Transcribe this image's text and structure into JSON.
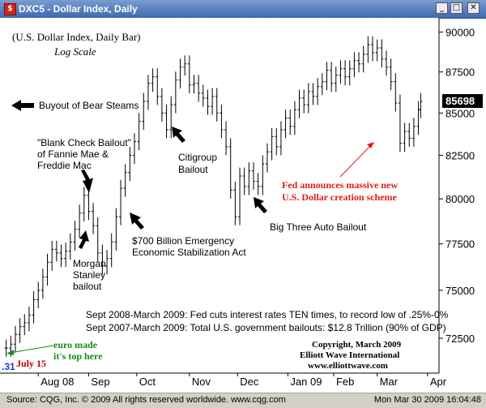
{
  "window": {
    "title": "DXC5 - Dollar Index, Daily",
    "icon": "cqg-chart-icon",
    "min": "_",
    "max": "□",
    "close": "✕"
  },
  "status": {
    "left": "Source: CQG, Inc. © 2009 All rights reserved worldwide. www.cqg.com",
    "right": "Mon Mar 30 2009 16:04:48"
  },
  "chart_data": {
    "type": "ohlc",
    "title": "(U.S. Dollar Index, Daily Bar)",
    "subtitle": "Log Scale",
    "ylabel": "",
    "xlabel": "",
    "y_scale": "log",
    "ylim": [
      70900,
      90700
    ],
    "y_ticks": [
      72500,
      75000,
      77500,
      80000,
      82500,
      85000,
      87500,
      90000
    ],
    "y_tick_labels": [
      "72500",
      "75000",
      "77500",
      "80000",
      "82500",
      "85000",
      "87500",
      "90000"
    ],
    "last_price": 85698,
    "last_price_label": "85698",
    "x_tick_labels": [
      "Aug 08",
      "Sep",
      "Oct",
      "Nov",
      "Dec",
      "Jan 09",
      "Feb",
      "Mar",
      "Apr"
    ],
    "x_tick_days": [
      0,
      22,
      43,
      66,
      87,
      109,
      129,
      148,
      170
    ],
    "x_range_days": [
      -16,
      175
    ],
    "grid": false,
    "closes": [
      [
        -14,
        72000
      ],
      [
        -12,
        72200
      ],
      [
        -10,
        72700
      ],
      [
        -8,
        73100
      ],
      [
        -6,
        73300
      ],
      [
        -4,
        73700
      ],
      [
        -2,
        74500
      ],
      [
        0,
        75000
      ],
      [
        2,
        75700
      ],
      [
        4,
        76500
      ],
      [
        6,
        77200
      ],
      [
        8,
        77000
      ],
      [
        10,
        76700
      ],
      [
        12,
        77100
      ],
      [
        14,
        77600
      ],
      [
        16,
        78300
      ],
      [
        18,
        79200
      ],
      [
        20,
        80200
      ],
      [
        22,
        79300
      ],
      [
        24,
        78500
      ],
      [
        26,
        77000
      ],
      [
        28,
        76300
      ],
      [
        30,
        76700
      ],
      [
        32,
        77600
      ],
      [
        34,
        79000
      ],
      [
        36,
        80600
      ],
      [
        38,
        81500
      ],
      [
        40,
        82500
      ],
      [
        42,
        83300
      ],
      [
        44,
        84500
      ],
      [
        46,
        85700
      ],
      [
        48,
        86800
      ],
      [
        50,
        87200
      ],
      [
        52,
        86000
      ],
      [
        54,
        85000
      ],
      [
        56,
        84000
      ],
      [
        58,
        85500
      ],
      [
        60,
        87000
      ],
      [
        62,
        87800
      ],
      [
        64,
        88000
      ],
      [
        66,
        86700
      ],
      [
        68,
        86800
      ],
      [
        70,
        86200
      ],
      [
        72,
        85900
      ],
      [
        74,
        85400
      ],
      [
        76,
        86000
      ],
      [
        78,
        85000
      ],
      [
        80,
        84000
      ],
      [
        82,
        83000
      ],
      [
        84,
        80500
      ],
      [
        86,
        79000
      ],
      [
        88,
        81300
      ],
      [
        90,
        80700
      ],
      [
        92,
        81600
      ],
      [
        94,
        81000
      ],
      [
        96,
        80700
      ],
      [
        98,
        82000
      ],
      [
        100,
        82700
      ],
      [
        102,
        83600
      ],
      [
        104,
        83000
      ],
      [
        106,
        84000
      ],
      [
        108,
        84700
      ],
      [
        110,
        84200
      ],
      [
        112,
        85200
      ],
      [
        114,
        85900
      ],
      [
        116,
        85500
      ],
      [
        118,
        86300
      ],
      [
        120,
        86000
      ],
      [
        122,
        86600
      ],
      [
        124,
        86900
      ],
      [
        126,
        87600
      ],
      [
        128,
        86800
      ],
      [
        130,
        87300
      ],
      [
        132,
        87700
      ],
      [
        134,
        87200
      ],
      [
        136,
        87700
      ],
      [
        138,
        88200
      ],
      [
        140,
        88000
      ],
      [
        142,
        88600
      ],
      [
        144,
        89200
      ],
      [
        146,
        88700
      ],
      [
        148,
        89000
      ],
      [
        150,
        88300
      ],
      [
        152,
        87800
      ],
      [
        154,
        86900
      ],
      [
        156,
        85600
      ],
      [
        158,
        83200
      ],
      [
        160,
        83900
      ],
      [
        162,
        83500
      ],
      [
        164,
        84200
      ],
      [
        166,
        85200
      ],
      [
        167,
        85698
      ]
    ],
    "annotations": [
      {
        "text": "Buyout of Bear Steams",
        "color": "#000000"
      },
      {
        "lines": [
          "\"Blank Check Bailout\"",
          "of Fannie Mae &",
          "Freddie Mac"
        ],
        "color": "#000000"
      },
      {
        "lines": [
          "Morgan",
          "Stanley",
          "bailout"
        ],
        "color": "#000000"
      },
      {
        "lines": [
          "$700 Billion Emergency",
          "Economic Stabilization Act"
        ],
        "color": "#000000"
      },
      {
        "lines": [
          "Citigroup",
          "Bailout"
        ],
        "color": "#000000"
      },
      {
        "text": "Big Three Auto Bailout",
        "color": "#000000"
      },
      {
        "lines": [
          "Fed announces massive new",
          "U.S. Dollar creation scheme"
        ],
        "color": "#e21b1b"
      },
      {
        "lines": [
          "euro made",
          "it's top here"
        ],
        "color": "#1a8a1a"
      },
      {
        "text": "July 15",
        "color": "#c00000"
      },
      {
        "text": "Sept 2008-March 2009: Fed cuts interest rates TEN times, to record low of .25%-0%",
        "color": "#000000"
      },
      {
        "text": "Sept 2007-March 2009: Total U.S. government bailouts: $12.8 Trillion (90% of GDP)",
        "color": "#000000"
      },
      {
        "lines": [
          "Copyright, March 2009",
          "Elliott Wave International",
          "www.elliottwave.com"
        ],
        "color": "#000000"
      },
      {
        "text": ".31",
        "color": "#1a3ad0"
      }
    ]
  }
}
